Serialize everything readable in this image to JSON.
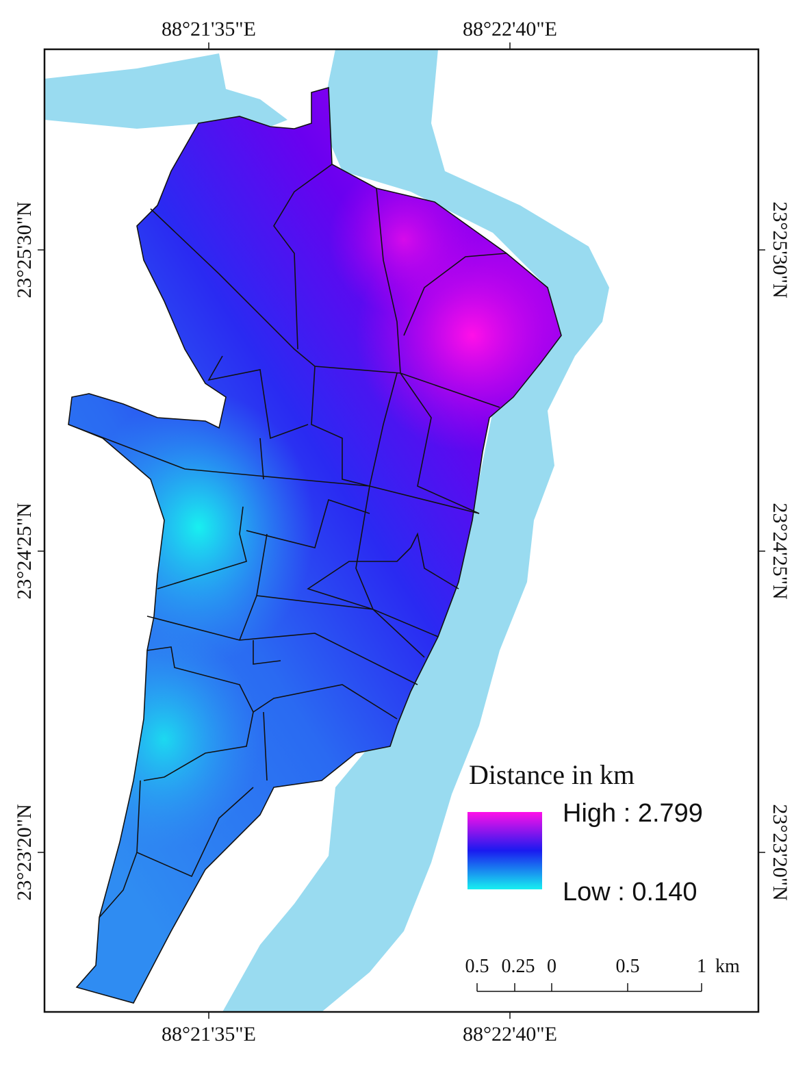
{
  "map": {
    "top_labels": [
      "88°21'35\"E",
      "88°22'40\"E"
    ],
    "bottom_labels": [
      "88°21'35\"E",
      "88°22'40\"E"
    ],
    "left_labels": [
      "23°25'30\"N",
      "23°24'25\"N",
      "23°23'20\"N"
    ],
    "right_labels": [
      "23°25'30\"N",
      "23°24'25\"N",
      "23°23'20\"N"
    ],
    "legend": {
      "title": "Distance in km",
      "high": "High : 2.799",
      "low": "Low : 0.140"
    },
    "scale_bar": {
      "labels": [
        "0.5",
        "0.25",
        "0",
        "0.5",
        "1"
      ],
      "unit": "km"
    }
  }
}
